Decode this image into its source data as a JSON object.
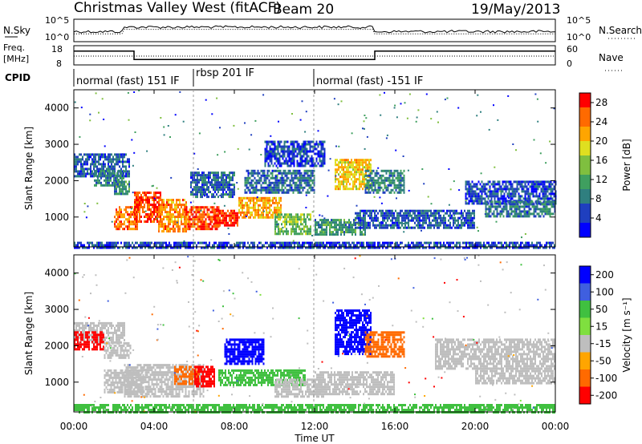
{
  "header": {
    "title": "Christmas Valley West (fitACF)",
    "beam": "Beam 20",
    "date": "19/May/2013"
  },
  "noise_panel": {
    "left_label": "N.Sky",
    "right_label": "N.Search",
    "left_ticks": [
      "10^5",
      "10^0"
    ],
    "right_ticks": [
      "10^5",
      "10^0"
    ]
  },
  "freq_panel": {
    "left_label_line1": "Freq.",
    "left_label_line2": "[MHz]",
    "right_label": "Nave",
    "left_ticks": [
      "18",
      "8"
    ],
    "right_ticks": [
      "60",
      "0"
    ],
    "freq_steps": [
      {
        "t0": 0,
        "t1": 3,
        "level": 0.72
      },
      {
        "t0": 3,
        "t1": 15,
        "level": 0.28
      },
      {
        "t0": 15,
        "t1": 24,
        "level": 0.72
      }
    ]
  },
  "cpid_panel": {
    "label": "CPID",
    "segments": [
      {
        "start_hour": 0,
        "text": "normal (fast) 151 IF"
      },
      {
        "start_hour": 6,
        "text": "rbsp 201 IF"
      },
      {
        "start_hour": 12,
        "text": "normal (fast) -151 IF"
      }
    ]
  },
  "colors": {
    "ground_scatter": "#bebebe",
    "power_scale": [
      "#0000ff",
      "#1f3fbf",
      "#2f7f7f",
      "#3f9f5f",
      "#7fbf3f",
      "#dfdf20",
      "#ffa500",
      "#ff6a00",
      "#ff0000"
    ],
    "velocity_scale": [
      "#0000ff",
      "#3f5fdf",
      "#40c040",
      "#7fdf3f",
      "#bebebe",
      "#ffa500",
      "#ff6a00",
      "#ff0000"
    ]
  },
  "chart_data": [
    {
      "type": "heatmap",
      "name": "power",
      "ylabel": "Slant Range [km]",
      "xlabel": "Time UT",
      "x_ticks": [
        "00:00",
        "04:00",
        "08:00",
        "12:00",
        "16:00",
        "20:00",
        "00:00"
      ],
      "xlim_hours": [
        0,
        24
      ],
      "y_ticks": [
        1000,
        2000,
        3000,
        4000
      ],
      "ylim_km": [
        180,
        4500
      ],
      "colorbar_label": "Power [dB]",
      "colorbar_ticks": [
        28,
        24,
        20,
        16,
        12,
        8,
        4
      ],
      "colorbar_range": [
        0,
        30
      ],
      "regions": [
        {
          "t0": 0.0,
          "t1": 2.8,
          "r0": 2150,
          "r1": 2750,
          "value": 6
        },
        {
          "t0": 1.0,
          "t1": 2.5,
          "r0": 1850,
          "r1": 2300,
          "value": 9
        },
        {
          "t0": 2.0,
          "t1": 2.8,
          "r0": 1650,
          "r1": 2000,
          "value": 10
        },
        {
          "t0": 2.0,
          "t1": 3.2,
          "r0": 650,
          "r1": 1300,
          "value": 24
        },
        {
          "t0": 3.0,
          "t1": 4.3,
          "r0": 900,
          "r1": 1700,
          "value": 27
        },
        {
          "t0": 4.2,
          "t1": 5.6,
          "r0": 600,
          "r1": 1500,
          "value": 23
        },
        {
          "t0": 5.5,
          "t1": 7.2,
          "r0": 650,
          "r1": 1300,
          "value": 26
        },
        {
          "t0": 7.0,
          "t1": 8.2,
          "r0": 750,
          "r1": 1200,
          "value": 28
        },
        {
          "t0": 5.8,
          "t1": 8.0,
          "r0": 1550,
          "r1": 2250,
          "value": 7
        },
        {
          "t0": 8.2,
          "t1": 10.3,
          "r0": 1000,
          "r1": 1550,
          "value": 22
        },
        {
          "t0": 10.0,
          "t1": 11.8,
          "r0": 550,
          "r1": 1100,
          "value": 14
        },
        {
          "t0": 8.5,
          "t1": 12.0,
          "r0": 1650,
          "r1": 2300,
          "value": 7
        },
        {
          "t0": 9.5,
          "t1": 12.5,
          "r0": 2400,
          "r1": 3100,
          "value": 5
        },
        {
          "t0": 12.0,
          "t1": 14.5,
          "r0": 500,
          "r1": 950,
          "value": 10
        },
        {
          "t0": 13.0,
          "t1": 14.8,
          "r0": 1800,
          "r1": 2600,
          "value": 20
        },
        {
          "t0": 14.5,
          "t1": 16.5,
          "r0": 1650,
          "r1": 2300,
          "value": 9
        },
        {
          "t0": 14.0,
          "t1": 20.0,
          "r0": 700,
          "r1": 1200,
          "value": 6
        },
        {
          "t0": 19.5,
          "t1": 24.0,
          "r0": 1400,
          "r1": 2000,
          "value": 5
        },
        {
          "t0": 20.5,
          "t1": 24.0,
          "r0": 1050,
          "r1": 1450,
          "value": 8
        },
        {
          "t0": 0.0,
          "t1": 24.0,
          "r0": 180,
          "r1": 320,
          "value": 5
        }
      ]
    },
    {
      "type": "heatmap",
      "name": "velocity",
      "ylabel": "Slant Range [km]",
      "xlabel": "Time UT",
      "x_ticks": [
        "00:00",
        "04:00",
        "08:00",
        "12:00",
        "16:00",
        "20:00",
        "00:00"
      ],
      "xlim_hours": [
        0,
        24
      ],
      "y_ticks": [
        1000,
        2000,
        3000,
        4000
      ],
      "ylim_km": [
        180,
        4500
      ],
      "colorbar_label": "Velocity [m s⁻¹]",
      "colorbar_ticks": [
        "200",
        "100",
        "50",
        "15",
        "-15",
        "-50",
        "-100",
        "-200"
      ],
      "regions": [
        {
          "t0": 0.0,
          "t1": 2.5,
          "r0": 2100,
          "r1": 2650,
          "value": "gs"
        },
        {
          "t0": 0.0,
          "t1": 1.5,
          "r0": 1900,
          "r1": 2400,
          "value": -180
        },
        {
          "t0": 1.5,
          "t1": 2.8,
          "r0": 1700,
          "r1": 2100,
          "value": "gs"
        },
        {
          "t0": 1.5,
          "t1": 3.5,
          "r0": 700,
          "r1": 1350,
          "value": "gs"
        },
        {
          "t0": 2.5,
          "t1": 6.5,
          "r0": 600,
          "r1": 1500,
          "value": "gs"
        },
        {
          "t0": 5.0,
          "t1": 6.2,
          "r0": 950,
          "r1": 1450,
          "value": -60
        },
        {
          "t0": 6.0,
          "t1": 7.0,
          "r0": 900,
          "r1": 1450,
          "value": -120
        },
        {
          "t0": 7.2,
          "t1": 8.2,
          "r0": 900,
          "r1": 1350,
          "value": 30
        },
        {
          "t0": 8.2,
          "t1": 11.5,
          "r0": 900,
          "r1": 1350,
          "value": 60
        },
        {
          "t0": 7.5,
          "t1": 9.5,
          "r0": 1500,
          "r1": 2200,
          "value": 180
        },
        {
          "t0": 10.0,
          "t1": 12.5,
          "r0": 600,
          "r1": 1100,
          "value": "gs"
        },
        {
          "t0": 13.0,
          "t1": 14.8,
          "r0": 1800,
          "r1": 3000,
          "value": 150
        },
        {
          "t0": 14.5,
          "t1": 16.5,
          "r0": 1700,
          "r1": 2400,
          "value": -70
        },
        {
          "t0": 12.0,
          "t1": 16.0,
          "r0": 700,
          "r1": 1300,
          "value": "gs"
        },
        {
          "t0": 18.0,
          "t1": 24.0,
          "r0": 1400,
          "r1": 2200,
          "value": "gs"
        },
        {
          "t0": 20.0,
          "t1": 24.0,
          "r0": 1000,
          "r1": 1400,
          "value": "gs"
        },
        {
          "t0": 0.0,
          "t1": 24.0,
          "r0": 180,
          "r1": 400,
          "value": 40
        }
      ]
    }
  ]
}
